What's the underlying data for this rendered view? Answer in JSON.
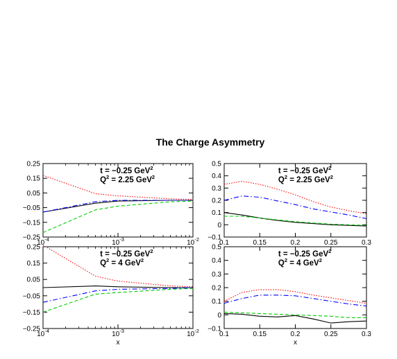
{
  "figure_title": "The Charge Asymmetry",
  "chart_data": [
    {
      "type": "line",
      "position": "top-left",
      "xscale": "log",
      "xlim": [
        0.0001,
        0.01
      ],
      "ylim": [
        -0.25,
        0.25
      ],
      "xticks": [
        0.0001,
        0.001,
        0.01
      ],
      "xtick_labels": [
        {
          "base": "10",
          "exp": "-4"
        },
        {
          "base": "10",
          "exp": "-3"
        },
        {
          "base": "10",
          "exp": "-2"
        }
      ],
      "yticks": [
        -0.25,
        -0.15,
        -0.05,
        0.05,
        0.15,
        0.25
      ],
      "ytick_labels": [
        "−0.25",
        "−0.15",
        "−0.05",
        "0.05",
        "0.15",
        "0.25"
      ],
      "xlabel": "",
      "annotation": {
        "line1": {
          "pre": "t = −0.25 GeV",
          "sup": "2",
          "post": ""
        },
        "line2": {
          "pre": "Q",
          "sup": "2",
          "post": " = 2.25 GeV",
          "sup2": "2"
        }
      },
      "series": [
        {
          "style": "solid",
          "color": "#000000",
          "x": [
            0.0001,
            0.0005,
            0.001,
            0.005,
            0.01
          ],
          "y": [
            -0.08,
            -0.02,
            -0.005,
            0.0,
            0.0
          ]
        },
        {
          "style": "dotted",
          "color": "#ff0000",
          "x": [
            0.0001,
            0.0005,
            0.001,
            0.005,
            0.01
          ],
          "y": [
            0.17,
            0.045,
            0.03,
            0.01,
            0.005
          ]
        },
        {
          "style": "dashdot",
          "color": "#0000ff",
          "x": [
            0.0001,
            0.0005,
            0.001,
            0.005,
            0.01
          ],
          "y": [
            -0.08,
            -0.01,
            0.0,
            0.0,
            0.0
          ]
        },
        {
          "style": "dashed",
          "color": "#00cc00",
          "x": [
            0.0001,
            0.0005,
            0.001,
            0.005,
            0.01
          ],
          "y": [
            -0.22,
            -0.065,
            -0.04,
            -0.01,
            -0.005
          ]
        }
      ]
    },
    {
      "type": "line",
      "position": "top-right",
      "xscale": "linear",
      "xlim": [
        0.1,
        0.3
      ],
      "ylim": [
        -0.1,
        0.5
      ],
      "xticks": [
        0.1,
        0.15,
        0.2,
        0.25,
        0.3
      ],
      "xtick_labels": [
        "0.1",
        "0.15",
        "0.2",
        "0.25",
        "0.3"
      ],
      "yticks": [
        -0.1,
        0,
        0.1,
        0.2,
        0.3,
        0.4,
        0.5
      ],
      "ytick_labels": [
        "−0.1",
        "0",
        "0.1",
        "0.2",
        "0.3",
        "0.4",
        "0.5"
      ],
      "xlabel": "",
      "annotation": {
        "line1": {
          "pre": "t = −0.25 GeV",
          "sup": "2",
          "post": ""
        },
        "line2": {
          "pre": "Q",
          "sup": "2",
          "post": " = 2.25 GeV",
          "sup2": "2"
        }
      },
      "series": [
        {
          "style": "solid",
          "color": "#000000",
          "x": [
            0.1,
            0.125,
            0.15,
            0.175,
            0.2,
            0.225,
            0.25,
            0.275,
            0.3
          ],
          "y": [
            0.1,
            0.08,
            0.055,
            0.035,
            0.02,
            0.01,
            0.0,
            -0.005,
            -0.01
          ]
        },
        {
          "style": "dotted",
          "color": "#ff0000",
          "x": [
            0.1,
            0.125,
            0.15,
            0.175,
            0.2,
            0.225,
            0.25,
            0.275,
            0.3
          ],
          "y": [
            0.33,
            0.355,
            0.33,
            0.29,
            0.245,
            0.19,
            0.145,
            0.115,
            0.09
          ]
        },
        {
          "style": "dashdot",
          "color": "#0000ff",
          "x": [
            0.1,
            0.125,
            0.15,
            0.175,
            0.2,
            0.225,
            0.25,
            0.275,
            0.3
          ],
          "y": [
            0.2,
            0.235,
            0.225,
            0.195,
            0.165,
            0.13,
            0.105,
            0.08,
            0.05
          ]
        },
        {
          "style": "dashed",
          "color": "#00cc00",
          "x": [
            0.1,
            0.125,
            0.15,
            0.175,
            0.2,
            0.225,
            0.25,
            0.275,
            0.3
          ],
          "y": [
            0.07,
            0.07,
            0.055,
            0.04,
            0.025,
            0.015,
            0.005,
            0.0,
            -0.005
          ]
        }
      ]
    },
    {
      "type": "line",
      "position": "bottom-left",
      "xscale": "log",
      "xlim": [
        0.0001,
        0.01
      ],
      "ylim": [
        -0.25,
        0.25
      ],
      "xticks": [
        0.0001,
        0.001,
        0.01
      ],
      "xtick_labels": [
        {
          "base": "10",
          "exp": "-4"
        },
        {
          "base": "10",
          "exp": "-3"
        },
        {
          "base": "10",
          "exp": "-2"
        }
      ],
      "yticks": [
        -0.25,
        -0.15,
        -0.05,
        0.05,
        0.15,
        0.25
      ],
      "ytick_labels": [
        "−0.25",
        "−0.15",
        "−0.05",
        "0.05",
        "0.15",
        "0.25"
      ],
      "xlabel": "x",
      "annotation": {
        "line1": {
          "pre": "t = −0.25 GeV",
          "sup": "2",
          "post": ""
        },
        "line2": {
          "pre": "Q",
          "sup": "2",
          "post": " = 4 GeV",
          "sup2": "2"
        }
      },
      "series": [
        {
          "style": "solid",
          "color": "#000000",
          "x": [
            0.0001,
            0.0005,
            0.001,
            0.005,
            0.01
          ],
          "y": [
            0.0,
            0.01,
            0.005,
            0.0,
            0.0
          ]
        },
        {
          "style": "dotted",
          "color": "#ff0000",
          "x": [
            0.0001,
            0.0005,
            0.001,
            0.005,
            0.01
          ],
          "y": [
            0.26,
            0.07,
            0.04,
            0.01,
            0.005
          ]
        },
        {
          "style": "dashdot",
          "color": "#0000ff",
          "x": [
            0.0001,
            0.0005,
            0.001,
            0.005,
            0.01
          ],
          "y": [
            -0.09,
            -0.02,
            -0.01,
            -0.005,
            0.0
          ]
        },
        {
          "style": "dashed",
          "color": "#00cc00",
          "x": [
            0.0001,
            0.0005,
            0.001,
            0.005,
            0.01
          ],
          "y": [
            -0.15,
            -0.04,
            -0.03,
            -0.01,
            -0.005
          ]
        }
      ]
    },
    {
      "type": "line",
      "position": "bottom-right",
      "xscale": "linear",
      "xlim": [
        0.1,
        0.3
      ],
      "ylim": [
        -0.1,
        0.5
      ],
      "xticks": [
        0.1,
        0.15,
        0.2,
        0.25,
        0.3
      ],
      "xtick_labels": [
        "0.1",
        "0.15",
        "0.2",
        "0.25",
        "0.3"
      ],
      "yticks": [
        -0.1,
        0,
        0.1,
        0.2,
        0.3,
        0.4,
        0.5
      ],
      "ytick_labels": [
        "−0.1",
        "0",
        "0.1",
        "0.2",
        "0.3",
        "0.4",
        "0.5"
      ],
      "xlabel": "x",
      "annotation": {
        "line1": {
          "pre": "t = −0.25 GeV",
          "sup": "2",
          "post": ""
        },
        "line2": {
          "pre": "Q",
          "sup": "2",
          "post": " = 4 GeV",
          "sup2": "2"
        }
      },
      "series": [
        {
          "style": "solid",
          "color": "#000000",
          "x": [
            0.1,
            0.125,
            0.15,
            0.175,
            0.2,
            0.225,
            0.25,
            0.275,
            0.3
          ],
          "y": [
            0.01,
            0.005,
            -0.01,
            -0.015,
            -0.005,
            -0.03,
            -0.06,
            -0.05,
            -0.045
          ]
        },
        {
          "style": "dotted",
          "color": "#ff0000",
          "x": [
            0.1,
            0.125,
            0.15,
            0.175,
            0.2,
            0.225,
            0.25,
            0.275,
            0.3
          ],
          "y": [
            0.1,
            0.165,
            0.185,
            0.185,
            0.17,
            0.145,
            0.125,
            0.105,
            0.085
          ]
        },
        {
          "style": "dashdot",
          "color": "#0000ff",
          "x": [
            0.1,
            0.125,
            0.15,
            0.175,
            0.2,
            0.225,
            0.25,
            0.275,
            0.3
          ],
          "y": [
            0.085,
            0.12,
            0.145,
            0.145,
            0.14,
            0.12,
            0.1,
            0.08,
            0.065
          ]
        },
        {
          "style": "dashed",
          "color": "#00cc00",
          "x": [
            0.1,
            0.125,
            0.15,
            0.175,
            0.2,
            0.225,
            0.25,
            0.275,
            0.3
          ],
          "y": [
            0.02,
            0.015,
            0.01,
            0.005,
            0.0,
            -0.005,
            -0.01,
            -0.02,
            -0.02
          ]
        }
      ]
    }
  ]
}
